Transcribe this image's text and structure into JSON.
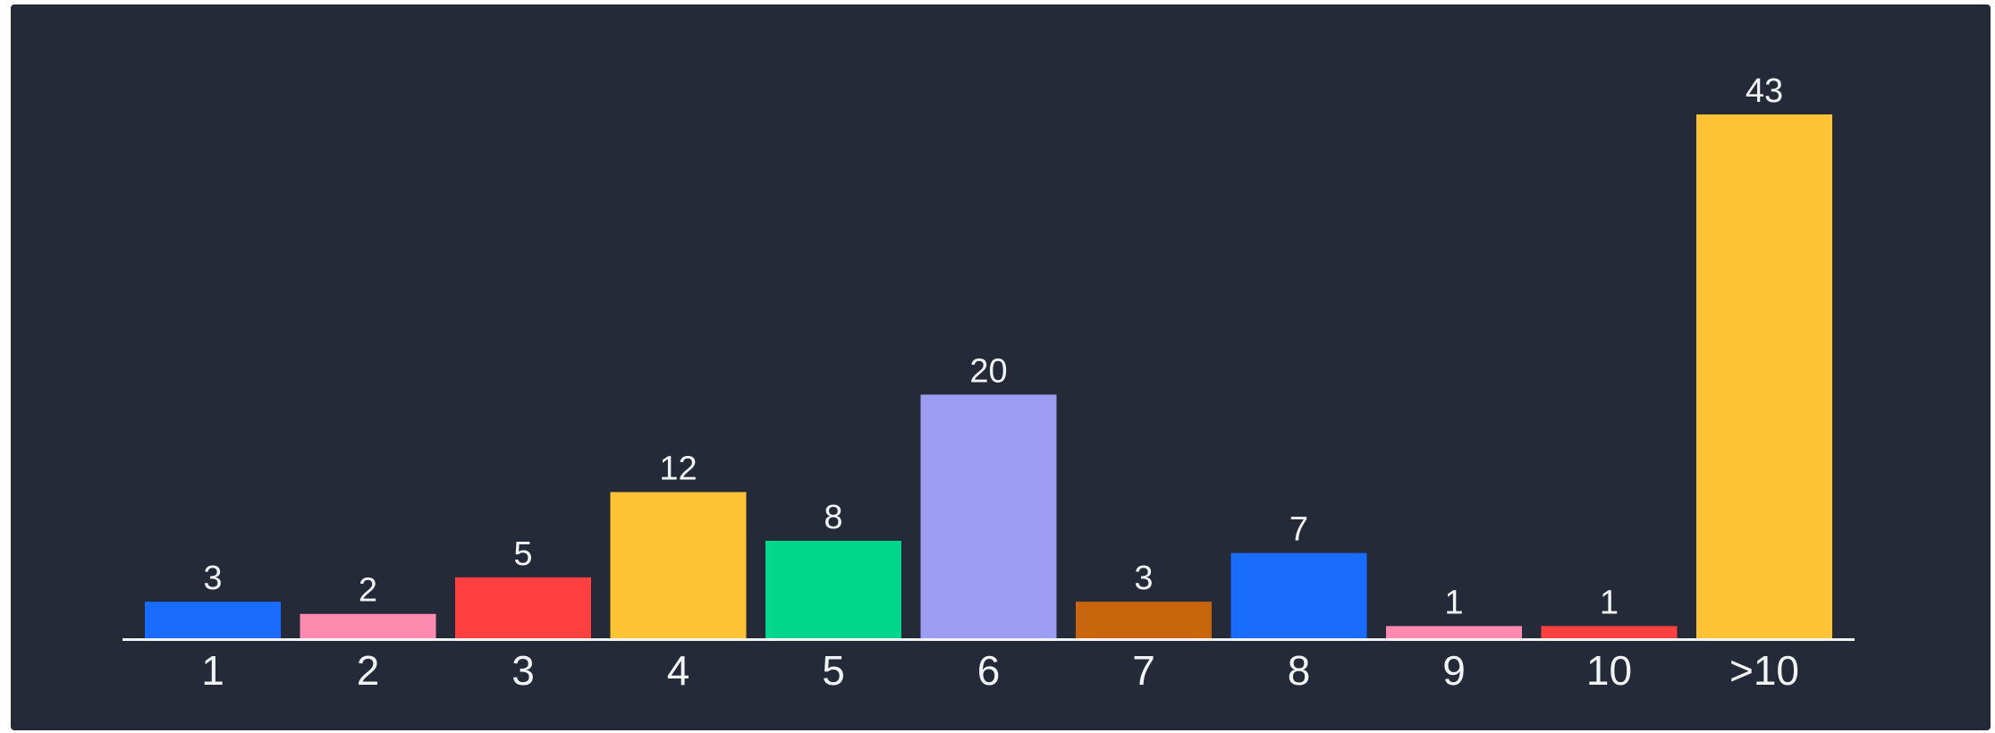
{
  "chart_data": {
    "type": "bar",
    "categories": [
      "1",
      "2",
      "3",
      "4",
      "5",
      "6",
      "7",
      "8",
      "9",
      "10",
      ">10"
    ],
    "values": [
      3,
      2,
      5,
      12,
      8,
      20,
      3,
      7,
      1,
      1,
      43
    ],
    "colors": [
      "#1a6bff",
      "#ff8ab0",
      "#ff4040",
      "#ffc335",
      "#00d68c",
      "#9b9cf2",
      "#c9650d",
      "#1a6bff",
      "#ff8ab0",
      "#ff4040",
      "#ffc335"
    ],
    "title": "",
    "xlabel": "",
    "ylabel": "",
    "ylim": [
      0,
      43
    ],
    "grid": false,
    "legend": "none",
    "data_labels": true,
    "background": "#242a37",
    "axis_color": "#f2f3f5"
  }
}
